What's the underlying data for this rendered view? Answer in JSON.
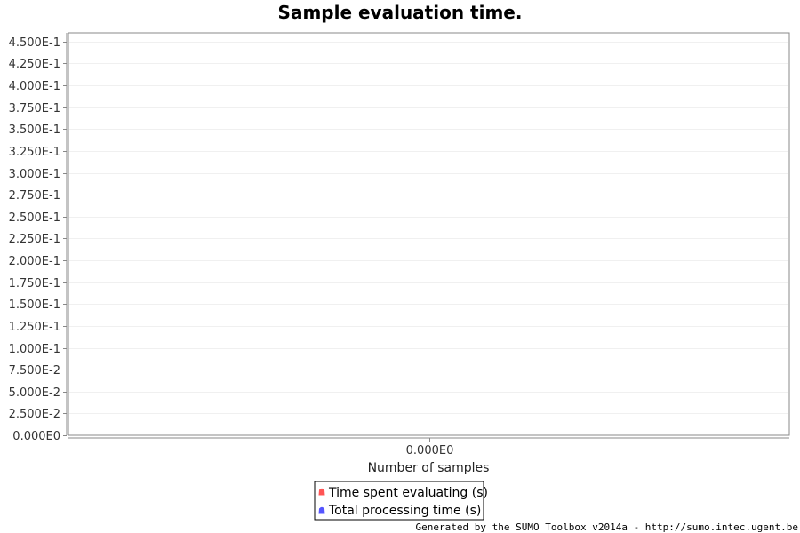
{
  "chart_data": {
    "type": "area",
    "title": "Sample evaluation time.",
    "xlabel": "Number of samples",
    "ylabel": "",
    "x_ticks": [
      "0.000E0"
    ],
    "y_ticks": [
      {
        "value": 0.0,
        "label": "0.000E0"
      },
      {
        "value": 0.025,
        "label": "2.500E-2"
      },
      {
        "value": 0.05,
        "label": "5.000E-2"
      },
      {
        "value": 0.075,
        "label": "7.500E-2"
      },
      {
        "value": 0.1,
        "label": "1.000E-1"
      },
      {
        "value": 0.125,
        "label": "1.250E-1"
      },
      {
        "value": 0.15,
        "label": "1.500E-1"
      },
      {
        "value": 0.175,
        "label": "1.750E-1"
      },
      {
        "value": 0.2,
        "label": "2.000E-1"
      },
      {
        "value": 0.225,
        "label": "2.250E-1"
      },
      {
        "value": 0.25,
        "label": "2.500E-1"
      },
      {
        "value": 0.275,
        "label": "2.750E-1"
      },
      {
        "value": 0.3,
        "label": "3.000E-1"
      },
      {
        "value": 0.325,
        "label": "3.250E-1"
      },
      {
        "value": 0.35,
        "label": "3.500E-1"
      },
      {
        "value": 0.375,
        "label": "3.750E-1"
      },
      {
        "value": 0.4,
        "label": "4.000E-1"
      },
      {
        "value": 0.425,
        "label": "4.250E-1"
      },
      {
        "value": 0.45,
        "label": "4.500E-1"
      }
    ],
    "ylim": [
      0,
      0.46
    ],
    "grid": true,
    "legend_position": "bottom",
    "series": [
      {
        "name": "Time spent evaluating (s)",
        "color": "#ff5555",
        "values": []
      },
      {
        "name": "Total processing time (s)",
        "color": "#5555ff",
        "values": []
      }
    ]
  },
  "footer": {
    "text": "Generated by the SUMO Toolbox v2014a - http://sumo.intec.ugent.be"
  }
}
